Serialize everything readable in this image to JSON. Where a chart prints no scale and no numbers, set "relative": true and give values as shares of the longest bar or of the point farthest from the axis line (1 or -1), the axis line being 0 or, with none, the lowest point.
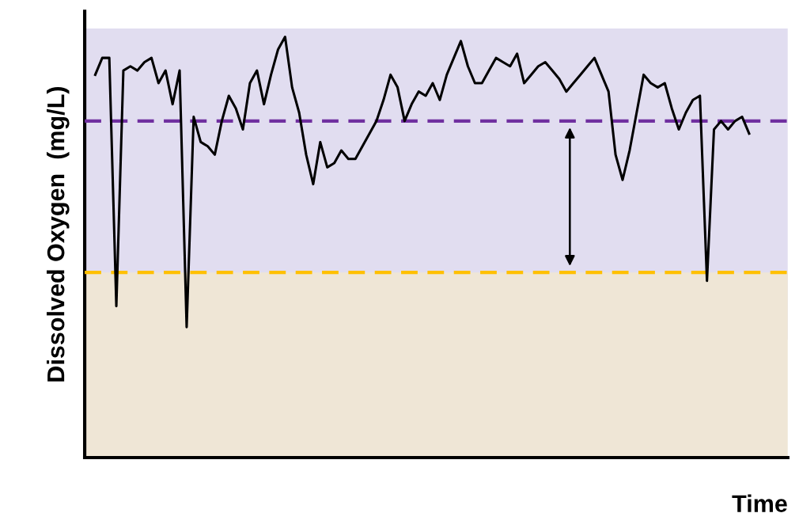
{
  "chart_data": {
    "type": "line",
    "relative": true,
    "xlabel": "Time",
    "ylabel": "Dissolved Oxygen  (mg/L)",
    "marker": "none",
    "line_style": "solid",
    "categories": [
      null,
      null,
      null,
      null,
      null,
      null,
      null,
      null,
      null,
      null,
      null,
      null,
      null,
      null,
      null,
      null,
      null,
      null,
      null,
      null,
      null,
      null,
      null,
      null,
      null,
      null,
      null,
      null,
      null,
      null,
      null,
      null,
      null,
      null,
      null,
      null,
      null,
      null,
      null,
      null,
      null,
      null,
      null,
      null,
      null,
      null,
      null,
      null,
      null,
      null,
      null,
      null,
      null,
      null,
      null,
      null,
      null,
      null,
      null,
      null,
      null,
      null,
      null,
      null,
      null,
      null,
      null,
      null,
      null,
      null,
      null,
      null,
      null,
      null,
      null,
      null,
      null,
      null,
      null,
      null,
      null,
      null,
      null,
      null,
      null,
      null,
      null,
      null,
      null,
      null,
      null,
      null,
      null,
      null
    ],
    "series": [
      {
        "color": "#000000",
        "values": [
          0.91,
          0.95,
          0.95,
          0.36,
          0.92,
          0.93,
          0.92,
          0.94,
          0.95,
          0.89,
          0.92,
          0.84,
          0.92,
          0.31,
          0.81,
          0.75,
          0.74,
          0.72,
          0.8,
          0.86,
          0.83,
          0.78,
          0.89,
          0.92,
          0.84,
          0.91,
          0.97,
          1.0,
          0.88,
          0.82,
          0.72,
          0.65,
          0.75,
          0.69,
          0.7,
          0.73,
          0.71,
          0.71,
          0.74,
          0.77,
          0.8,
          0.85,
          0.91,
          0.88,
          0.8,
          0.84,
          0.87,
          0.86,
          0.89,
          0.85,
          0.91,
          0.95,
          0.99,
          0.93,
          0.89,
          0.89,
          0.92,
          0.95,
          0.94,
          0.93,
          0.96,
          0.89,
          0.91,
          0.93,
          0.94,
          0.92,
          0.9,
          0.87,
          0.89,
          0.91,
          0.93,
          0.95,
          0.91,
          0.87,
          0.72,
          0.66,
          0.73,
          0.82,
          0.91,
          0.89,
          0.88,
          0.89,
          0.83,
          0.78,
          0.82,
          0.85,
          0.86,
          0.42,
          0.78,
          0.8,
          0.78,
          0.8,
          0.81,
          0.77
        ]
      }
    ],
    "ref_lines": [
      {
        "axis": "y",
        "value": 0.8,
        "color": "#7030a0",
        "line_style": "dashed"
      },
      {
        "axis": "y",
        "value": 0.44,
        "color": "#ffc000",
        "line_style": "dashed"
      }
    ],
    "bands": [
      {
        "axis": "y",
        "from": 0.28,
        "to": 1.02,
        "color": "#e1ddf0"
      },
      {
        "axis": "y",
        "from": 0,
        "to": 0.44,
        "color": "#efe6d6"
      }
    ]
  }
}
